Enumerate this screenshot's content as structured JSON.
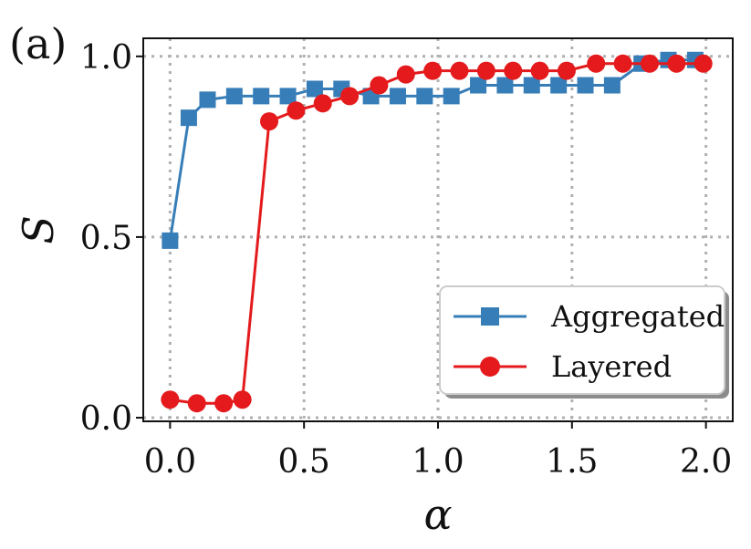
{
  "chart_data": {
    "type": "line",
    "panel_label": "(a)",
    "xlabel": "α",
    "ylabel": "S",
    "xlim": [
      -0.1,
      2.1
    ],
    "ylim": [
      -0.01,
      1.05
    ],
    "xticks": [
      0.0,
      0.5,
      1.0,
      1.5,
      2.0
    ],
    "xtick_labels": [
      "0.0",
      "0.5",
      "1.0",
      "1.5",
      "2.0"
    ],
    "yticks": [
      0.0,
      0.5,
      1.0
    ],
    "ytick_labels": [
      "0.0",
      "0.5",
      "1.0"
    ],
    "grid": true,
    "legend_position": "lower-right",
    "series": [
      {
        "name": "Aggregated",
        "marker": "square",
        "color": "#377eb8",
        "x": [
          0.0,
          0.07,
          0.14,
          0.24,
          0.34,
          0.44,
          0.54,
          0.64,
          0.75,
          0.85,
          0.95,
          1.05,
          1.15,
          1.25,
          1.35,
          1.45,
          1.55,
          1.65,
          1.76,
          1.86,
          1.96
        ],
        "y": [
          0.49,
          0.83,
          0.88,
          0.89,
          0.89,
          0.89,
          0.91,
          0.91,
          0.89,
          0.89,
          0.89,
          0.89,
          0.92,
          0.92,
          0.92,
          0.92,
          0.92,
          0.92,
          0.98,
          0.99,
          0.99
        ]
      },
      {
        "name": "Layered",
        "marker": "circle",
        "color": "#e41a1c",
        "x": [
          0.0,
          0.1,
          0.2,
          0.27,
          0.37,
          0.47,
          0.57,
          0.67,
          0.78,
          0.88,
          0.98,
          1.08,
          1.18,
          1.28,
          1.38,
          1.48,
          1.59,
          1.69,
          1.79,
          1.89,
          1.99
        ],
        "y": [
          0.05,
          0.04,
          0.04,
          0.05,
          0.82,
          0.85,
          0.87,
          0.89,
          0.92,
          0.95,
          0.96,
          0.96,
          0.96,
          0.96,
          0.96,
          0.96,
          0.98,
          0.98,
          0.98,
          0.98,
          0.98
        ]
      }
    ]
  }
}
